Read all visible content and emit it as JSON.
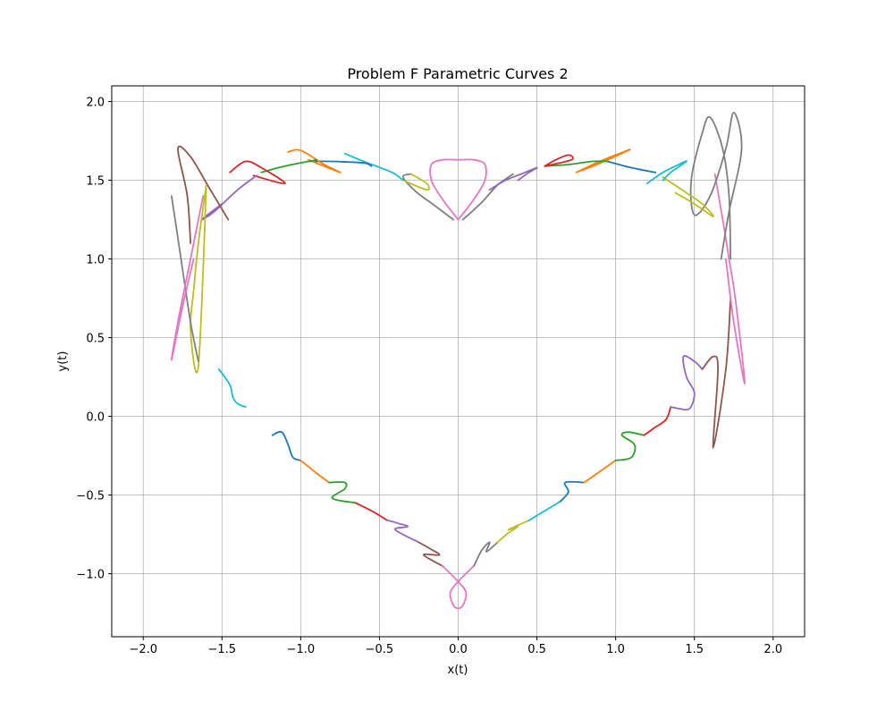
{
  "chart_data": {
    "type": "line",
    "title": "Problem F Parametric Curves 2",
    "xlabel": "x(t)",
    "ylabel": "y(t)",
    "xlim": [
      -2.2,
      2.2
    ],
    "ylim": [
      -1.4,
      2.1
    ],
    "xticks": [
      -2.0,
      -1.5,
      -1.0,
      -0.5,
      0.0,
      0.5,
      1.0,
      1.5,
      2.0
    ],
    "xtick_labels": [
      "−2.0",
      "−1.5",
      "−1.0",
      "−0.5",
      "0.0",
      "0.5",
      "1.0",
      "1.5",
      "2.0"
    ],
    "yticks": [
      -1.0,
      -0.5,
      0.0,
      0.5,
      1.0,
      1.5,
      2.0
    ],
    "ytick_labels": [
      "−1.0",
      "−0.5",
      "0.0",
      "0.5",
      "1.0",
      "1.5",
      "2.0"
    ],
    "grid": true,
    "palette": [
      "#1f77b4",
      "#ff7f0e",
      "#2ca02c",
      "#d62728",
      "#9467bd",
      "#8c564b",
      "#e377c2",
      "#7f7f7f",
      "#bcbd22",
      "#17becf"
    ],
    "series": [
      {
        "color": "#e377c2",
        "x": [
          0.0,
          -0.1,
          -0.17,
          -0.17,
          -0.1,
          0.0,
          0.1,
          0.17,
          0.17,
          0.1,
          0.0
        ],
        "y": [
          1.25,
          1.38,
          1.5,
          1.6,
          1.63,
          1.63,
          1.63,
          1.6,
          1.5,
          1.38,
          1.25
        ]
      },
      {
        "color": "#7f7f7f",
        "x": [
          -0.03,
          -0.15,
          -0.27,
          -0.35,
          -0.3
        ],
        "y": [
          1.25,
          1.34,
          1.43,
          1.52,
          1.54
        ]
      },
      {
        "color": "#7f7f7f",
        "x": [
          0.03,
          0.15,
          0.25,
          0.35
        ],
        "y": [
          1.25,
          1.36,
          1.47,
          1.54
        ]
      },
      {
        "color": "#bcbd22",
        "x": [
          -0.3,
          -0.2,
          -0.2,
          -0.35
        ],
        "y": [
          1.54,
          1.48,
          1.44,
          1.5
        ]
      },
      {
        "color": "#17becf",
        "x": [
          -0.72,
          -0.6,
          -0.42,
          -0.35
        ],
        "y": [
          1.67,
          1.62,
          1.55,
          1.5
        ]
      },
      {
        "color": "#1f77b4",
        "x": [
          -0.95,
          -0.8,
          -0.6,
          -0.55
        ],
        "y": [
          1.62,
          1.62,
          1.61,
          1.59
        ]
      },
      {
        "color": "#ff7f0e",
        "x": [
          -1.08,
          -1.0,
          -0.85,
          -0.75,
          -0.95
        ],
        "y": [
          1.68,
          1.69,
          1.6,
          1.55,
          1.63
        ]
      },
      {
        "color": "#2ca02c",
        "x": [
          -1.25,
          -1.1,
          -0.9
        ],
        "y": [
          1.55,
          1.59,
          1.63
        ]
      },
      {
        "color": "#d62728",
        "x": [
          -1.45,
          -1.35,
          -1.25,
          -1.1,
          -1.3
        ],
        "y": [
          1.55,
          1.62,
          1.58,
          1.48,
          1.53
        ]
      },
      {
        "color": "#9467bd",
        "x": [
          -1.28,
          -1.4,
          -1.55,
          -1.63,
          -1.5
        ],
        "y": [
          1.53,
          1.44,
          1.3,
          1.25,
          1.35
        ]
      },
      {
        "color": "#8c564b",
        "x": [
          -1.46,
          -1.58,
          -1.7,
          -1.78,
          -1.72,
          -1.7
        ],
        "y": [
          1.25,
          1.45,
          1.65,
          1.7,
          1.4,
          1.1
        ]
      },
      {
        "color": "#bcbd22",
        "x": [
          -1.6,
          -1.65,
          -1.68,
          -1.7,
          -1.65,
          -1.6
        ],
        "y": [
          1.47,
          1.1,
          0.8,
          0.55,
          0.32,
          1.45
        ]
      },
      {
        "color": "#7f7f7f",
        "x": [
          -1.82,
          -1.76,
          -1.7,
          -1.65
        ],
        "y": [
          1.4,
          1.0,
          0.6,
          0.35
        ]
      },
      {
        "color": "#e377c2",
        "x": [
          -1.62,
          -1.7,
          -1.78,
          -1.82,
          -1.75,
          -1.68
        ],
        "y": [
          1.4,
          1.0,
          0.6,
          0.36,
          0.7,
          1.0
        ]
      },
      {
        "color": "#17becf",
        "x": [
          -1.52,
          -1.45,
          -1.43,
          -1.4,
          -1.35
        ],
        "y": [
          0.3,
          0.2,
          0.12,
          0.08,
          0.06
        ]
      },
      {
        "color": "#1f77b4",
        "x": [
          -1.18,
          -1.12,
          -1.08,
          -1.05,
          -1.0
        ],
        "y": [
          -0.12,
          -0.1,
          -0.18,
          -0.26,
          -0.28
        ]
      },
      {
        "color": "#ff7f0e",
        "x": [
          -1.0,
          -0.9,
          -0.82
        ],
        "y": [
          -0.28,
          -0.36,
          -0.42
        ]
      },
      {
        "color": "#2ca02c",
        "x": [
          -0.82,
          -0.72,
          -0.72,
          -0.8,
          -0.65
        ],
        "y": [
          -0.42,
          -0.42,
          -0.46,
          -0.52,
          -0.55
        ]
      },
      {
        "color": "#d62728",
        "x": [
          -0.65,
          -0.55,
          -0.45
        ],
        "y": [
          -0.55,
          -0.6,
          -0.66
        ]
      },
      {
        "color": "#9467bd",
        "x": [
          -0.45,
          -0.38,
          -0.32,
          -0.4,
          -0.25
        ],
        "y": [
          -0.66,
          -0.68,
          -0.7,
          -0.72,
          -0.8
        ]
      },
      {
        "color": "#8c564b",
        "x": [
          -0.25,
          -0.18,
          -0.12,
          -0.22,
          -0.1
        ],
        "y": [
          -0.8,
          -0.84,
          -0.88,
          -0.88,
          -0.95
        ]
      },
      {
        "color": "#e377c2",
        "x": [
          -0.1,
          0.0,
          0.05,
          0.03,
          0.0,
          -0.03,
          -0.05,
          0.0,
          0.1
        ],
        "y": [
          -0.95,
          -1.05,
          -1.12,
          -1.2,
          -1.22,
          -1.2,
          -1.12,
          -1.05,
          -0.95
        ]
      },
      {
        "color": "#7f7f7f",
        "x": [
          0.1,
          0.15,
          0.2,
          0.18,
          0.25
        ],
        "y": [
          -0.95,
          -0.85,
          -0.8,
          -0.86,
          -0.8
        ]
      },
      {
        "color": "#bcbd22",
        "x": [
          0.25,
          0.32,
          0.38,
          0.32,
          0.45
        ],
        "y": [
          -0.8,
          -0.74,
          -0.7,
          -0.72,
          -0.66
        ]
      },
      {
        "color": "#17becf",
        "x": [
          0.45,
          0.55,
          0.65
        ],
        "y": [
          -0.66,
          -0.6,
          -0.54
        ]
      },
      {
        "color": "#1f77b4",
        "x": [
          0.65,
          0.7,
          0.68,
          0.8
        ],
        "y": [
          -0.54,
          -0.48,
          -0.42,
          -0.42
        ]
      },
      {
        "color": "#ff7f0e",
        "x": [
          0.8,
          0.9,
          1.0
        ],
        "y": [
          -0.42,
          -0.35,
          -0.28
        ]
      },
      {
        "color": "#2ca02c",
        "x": [
          1.0,
          1.1,
          1.12,
          1.04,
          1.08,
          1.18
        ],
        "y": [
          -0.28,
          -0.26,
          -0.18,
          -0.12,
          -0.1,
          -0.12
        ]
      },
      {
        "color": "#d62728",
        "x": [
          1.18,
          1.25,
          1.32,
          1.35
        ],
        "y": [
          -0.12,
          -0.07,
          -0.02,
          0.06
        ]
      },
      {
        "color": "#9467bd",
        "x": [
          1.35,
          1.4,
          1.47,
          1.5,
          1.45,
          1.43,
          1.5,
          1.55
        ],
        "y": [
          0.06,
          0.05,
          0.05,
          0.15,
          0.25,
          0.38,
          0.35,
          0.3
        ]
      },
      {
        "color": "#8c564b",
        "x": [
          1.55,
          1.62,
          1.65,
          1.62,
          1.7,
          1.73
        ],
        "y": [
          0.3,
          0.38,
          0.3,
          -0.2,
          0.3,
          0.75
        ]
      },
      {
        "color": "#e377c2",
        "x": [
          1.63,
          1.68,
          1.72,
          1.76,
          1.82,
          1.75,
          1.7
        ],
        "y": [
          1.54,
          1.25,
          1.0,
          0.75,
          0.21,
          0.6,
          1.0
        ]
      },
      {
        "color": "#7f7f7f",
        "x": [
          1.73,
          1.72,
          1.68,
          1.6,
          1.55,
          1.48,
          1.5,
          1.6,
          1.7,
          1.75,
          1.8,
          1.72,
          1.67
        ],
        "y": [
          1.0,
          1.4,
          1.7,
          1.9,
          1.8,
          1.5,
          1.28,
          1.4,
          1.7,
          1.93,
          1.7,
          1.3,
          1.0
        ]
      },
      {
        "color": "#bcbd22",
        "x": [
          1.3,
          1.45,
          1.55,
          1.62,
          1.5,
          1.38
        ],
        "y": [
          1.52,
          1.42,
          1.35,
          1.27,
          1.35,
          1.42
        ]
      },
      {
        "color": "#17becf",
        "x": [
          1.2,
          1.3,
          1.4,
          1.45,
          1.35,
          1.3
        ],
        "y": [
          1.48,
          1.55,
          1.6,
          1.62,
          1.55,
          1.5
        ]
      },
      {
        "color": "#1f77b4",
        "x": [
          0.95,
          1.1,
          1.25,
          1.2,
          1.15
        ],
        "y": [
          1.62,
          1.58,
          1.55,
          1.56,
          1.57
        ]
      },
      {
        "color": "#ff7f0e",
        "x": [
          0.75,
          0.9,
          1.05,
          1.08,
          0.88,
          0.75
        ],
        "y": [
          1.55,
          1.62,
          1.68,
          1.69,
          1.6,
          1.55
        ]
      },
      {
        "color": "#2ca02c",
        "x": [
          0.55,
          0.7,
          0.85,
          0.95
        ],
        "y": [
          1.59,
          1.6,
          1.62,
          1.62
        ]
      },
      {
        "color": "#d62728",
        "x": [
          0.55,
          0.62,
          0.7,
          0.72,
          0.55
        ],
        "y": [
          1.59,
          1.63,
          1.66,
          1.63,
          1.59
        ]
      },
      {
        "color": "#9467bd",
        "x": [
          0.2,
          0.3,
          0.4,
          0.5,
          0.45,
          0.38
        ],
        "y": [
          1.44,
          1.5,
          1.54,
          1.58,
          1.55,
          1.5
        ]
      }
    ]
  }
}
